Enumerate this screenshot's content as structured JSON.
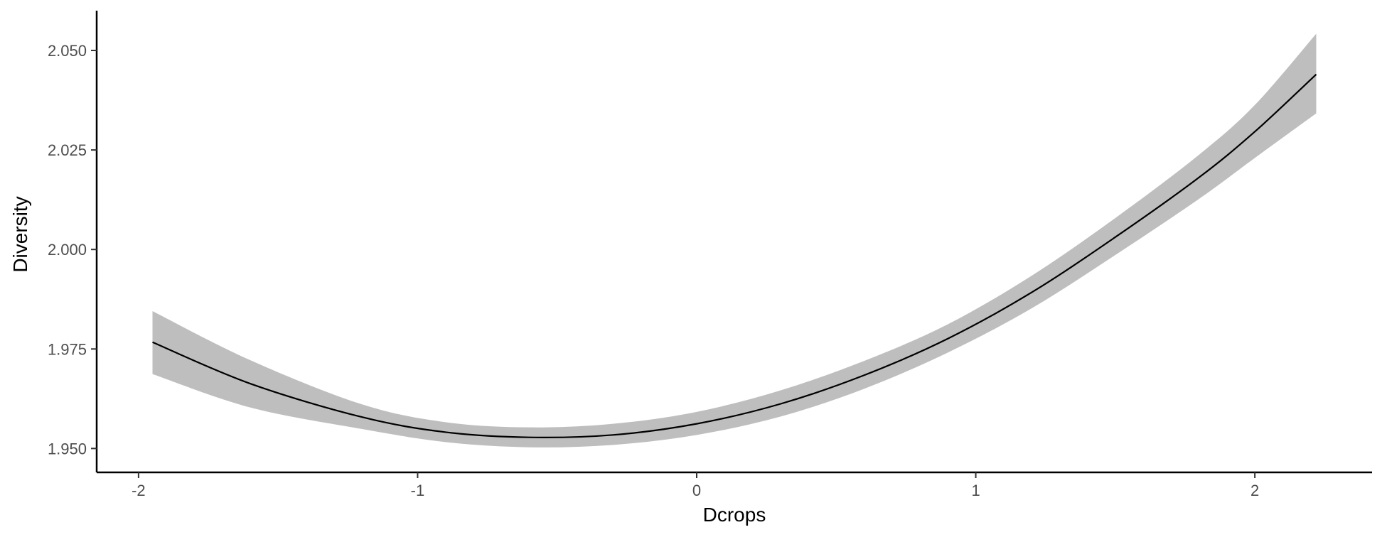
{
  "chart_data": {
    "type": "line",
    "title": "",
    "xlabel": "Dcrops",
    "ylabel": "Diversity",
    "xlim": [
      -2.15,
      2.42
    ],
    "ylim": [
      1.944,
      2.06
    ],
    "x_ticks": [
      -2,
      -1,
      0,
      1,
      2
    ],
    "x_tick_labels": [
      "-2",
      "-1",
      "0",
      "1",
      "2"
    ],
    "y_ticks": [
      1.95,
      1.975,
      2.0,
      2.025,
      2.05
    ],
    "y_tick_labels": [
      "1.950",
      "1.975",
      "2.000",
      "2.025",
      "2.050"
    ],
    "grid": false,
    "series": [
      {
        "line_color": "#000000",
        "band_color": "#bebebe",
        "x": [
          -1.95,
          -1.6,
          -1.2,
          -0.9,
          -0.6,
          -0.3,
          0.0,
          0.3,
          0.6,
          0.9,
          1.2,
          1.5,
          1.8,
          2.0,
          2.22
        ],
        "y": [
          1.9767,
          1.9663,
          1.9579,
          1.9541,
          1.9528,
          1.9534,
          1.9562,
          1.9612,
          1.9684,
          1.9776,
          1.9892,
          2.0031,
          2.0181,
          2.0296,
          2.044
        ],
        "lower": [
          1.9687,
          1.9603,
          1.9549,
          1.9516,
          1.9503,
          1.9509,
          1.9534,
          1.958,
          1.965,
          1.9741,
          1.9852,
          1.9986,
          2.0127,
          2.023,
          2.0342
        ],
        "upper": [
          1.9845,
          1.9722,
          1.9611,
          1.9566,
          1.9553,
          1.9562,
          1.9592,
          1.9646,
          1.972,
          1.9812,
          1.9934,
          2.0079,
          2.0238,
          2.0363,
          2.0542
        ]
      }
    ]
  }
}
